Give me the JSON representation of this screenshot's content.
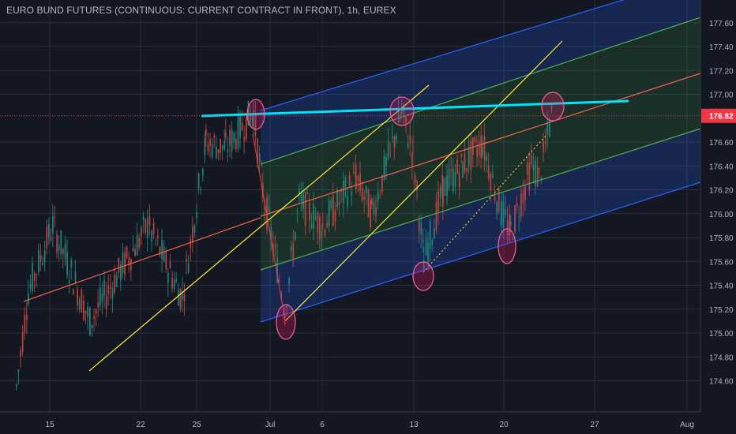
{
  "header": {
    "title": "EURO BUND FUTURES (CONTINUOUS: CURRENT CONTRACT IN FRONT), 1h, EUREX"
  },
  "colors": {
    "background": "#131722",
    "grid": "#2a2e39",
    "axis_text": "#b2b5be",
    "candle_up": "#26a69a",
    "candle_down": "#ef5350",
    "regression_line": "#f0624d",
    "fork_lines": "#ffeb3b",
    "channel_outer": "#2962ff",
    "channel_inner": "#4caf50",
    "resistance_line": "#00e5ff",
    "highlight_ellipse": "#e91e63",
    "price_label_bg": "#f23645"
  },
  "chart_data": {
    "type": "candlestick",
    "title": "EURO BUND FUTURES (CONTINUOUS: CURRENT CONTRACT IN FRONT), 1h, EUREX",
    "x_ticks": [
      "15",
      "22",
      "25",
      "Jul",
      "6",
      "13",
      "20",
      "27",
      "Aug"
    ],
    "y_ticks": [
      "177.60",
      "177.40",
      "177.20",
      "177.00",
      "176.60",
      "176.40",
      "176.20",
      "176.00",
      "175.80",
      "175.60",
      "175.40",
      "175.20",
      "175.00",
      "174.80",
      "174.60"
    ],
    "ylim": [
      174.45,
      177.8
    ],
    "last_price": "176.82",
    "price_path": [
      [
        174.55,
        "start"
      ],
      [
        175.35,
        "15 area"
      ],
      [
        175.9,
        "15"
      ],
      [
        175.1,
        "18"
      ],
      [
        175.9,
        "22"
      ],
      [
        175.3,
        "23"
      ],
      [
        176.6,
        "25"
      ],
      [
        176.55,
        "26"
      ],
      [
        176.85,
        "29"
      ],
      [
        176.2,
        "30"
      ],
      [
        175.2,
        "Jul 2"
      ],
      [
        176.1,
        "Jul 3"
      ],
      [
        175.9,
        "6"
      ],
      [
        176.3,
        "9"
      ],
      [
        176.0,
        "10"
      ],
      [
        176.85,
        "11"
      ],
      [
        176.5,
        "12"
      ],
      [
        175.6,
        "13"
      ],
      [
        176.2,
        "15"
      ],
      [
        176.4,
        "17"
      ],
      [
        176.6,
        "18"
      ],
      [
        176.0,
        "20"
      ],
      [
        175.85,
        "21"
      ],
      [
        176.4,
        "22"
      ],
      [
        176.3,
        "23"
      ],
      [
        176.9,
        "24"
      ]
    ],
    "grid": true
  }
}
